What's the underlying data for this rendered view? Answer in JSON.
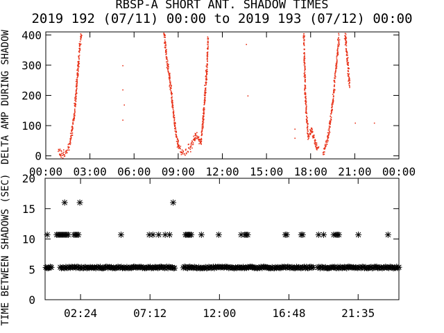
{
  "title": "RBSP-A SHORT ANT. SHADOW TIMES",
  "subtitle": "2019 192 (07/11) 00:00 to 2019 193 (07/12) 00:00",
  "colors": {
    "top_series": "#e8331a",
    "bottom_series": "#000000",
    "frame": "#000000"
  },
  "chart_data": [
    {
      "type": "scatter",
      "ylabel": "DELTA AMP DURING SHADOW",
      "ylim": [
        -10,
        410
      ],
      "xlim_hours": [
        0,
        24
      ],
      "yticks": [
        "0",
        "100",
        "200",
        "300",
        "400"
      ],
      "ytick_values": [
        0,
        100,
        200,
        300,
        400
      ],
      "xticks": [
        "00:00",
        "03:00",
        "06:00",
        "09:00",
        "12:00",
        "15:00",
        "18:00",
        "21:00",
        "00:00"
      ],
      "xtick_values": [
        0,
        3,
        6,
        9,
        12,
        15,
        18,
        21,
        24
      ],
      "series": [
        {
          "color": "#e8331a",
          "marker": "dot",
          "curves": [
            [
              [
                0.8,
                20
              ],
              [
                1.0,
                5
              ],
              [
                1.3,
                10
              ],
              [
                1.6,
                40
              ],
              [
                1.9,
                130
              ],
              [
                2.1,
                260
              ],
              [
                2.3,
                380
              ],
              [
                2.4,
                410
              ]
            ],
            [
              [
                8.0,
                410
              ],
              [
                8.2,
                320
              ],
              [
                8.4,
                250
              ],
              [
                8.6,
                160
              ],
              [
                8.8,
                80
              ],
              [
                9.0,
                30
              ],
              [
                9.3,
                10
              ],
              [
                9.8,
                30
              ],
              [
                10.2,
                70
              ],
              [
                10.5,
                40
              ]
            ],
            [
              [
                10.5,
                40
              ],
              [
                10.7,
                150
              ],
              [
                10.9,
                280
              ],
              [
                11.0,
                400
              ]
            ],
            [
              [
                17.5,
                410
              ],
              [
                17.6,
                200
              ],
              [
                17.8,
                60
              ],
              [
                18.0,
                90
              ],
              [
                18.3,
                40
              ],
              [
                18.5,
                20
              ]
            ],
            [
              [
                18.8,
                10
              ],
              [
                19.1,
                50
              ],
              [
                19.4,
                150
              ],
              [
                19.7,
                300
              ],
              [
                19.9,
                400
              ]
            ],
            [
              [
                20.3,
                410
              ],
              [
                20.5,
                300
              ],
              [
                20.6,
                230
              ]
            ]
          ],
          "scatter": [
            [
              5.2,
              300
            ],
            [
              5.2,
              220
            ],
            [
              5.3,
              170
            ],
            [
              5.2,
              120
            ],
            [
              13.6,
              370
            ],
            [
              13.7,
              200
            ],
            [
              21.0,
              110
            ],
            [
              22.3,
              110
            ],
            [
              16.9,
              90
            ],
            [
              16.9,
              60
            ]
          ]
        }
      ]
    },
    {
      "type": "scatter",
      "ylabel": "TIME BETWEEN SHADOWS (SEC)",
      "ylim": [
        0,
        20
      ],
      "xlim_hours": [
        -0.05,
        24.4
      ],
      "yticks": [
        "0",
        "5",
        "10",
        "15",
        "20"
      ],
      "ytick_values": [
        0,
        5,
        10,
        15,
        20
      ],
      "xticks": [
        "02:24",
        "07:12",
        "12:00",
        "16:48",
        "21:35"
      ],
      "xtick_values": [
        2.4,
        7.2,
        12.0,
        16.8,
        21.583
      ],
      "series": [
        {
          "color": "#000000",
          "marker": "asterisk",
          "band_y": 5.3,
          "band_segments": [
            [
              0.0,
              0.45
            ],
            [
              1.0,
              8.95
            ],
            [
              9.5,
              18.5
            ],
            [
              18.8,
              24.4
            ]
          ],
          "points": [
            [
              0.1,
              10.7
            ],
            [
              0.75,
              10.7
            ],
            [
              0.85,
              10.7
            ],
            [
              0.95,
              10.7
            ],
            [
              1.05,
              10.7
            ],
            [
              1.15,
              10.7
            ],
            [
              1.25,
              10.7
            ],
            [
              1.35,
              10.7
            ],
            [
              1.45,
              10.7
            ],
            [
              1.55,
              10.7
            ],
            [
              1.3,
              16.0
            ],
            [
              2.35,
              16.0
            ],
            [
              1.95,
              10.7
            ],
            [
              2.05,
              10.7
            ],
            [
              2.15,
              10.7
            ],
            [
              2.25,
              10.7
            ],
            [
              5.2,
              10.7
            ],
            [
              7.15,
              10.7
            ],
            [
              7.4,
              10.7
            ],
            [
              7.8,
              10.7
            ],
            [
              8.25,
              10.7
            ],
            [
              8.55,
              10.7
            ],
            [
              8.8,
              16.0
            ],
            [
              9.65,
              10.7
            ],
            [
              9.75,
              10.7
            ],
            [
              9.85,
              10.7
            ],
            [
              9.95,
              10.7
            ],
            [
              10.05,
              10.7
            ],
            [
              10.75,
              10.7
            ],
            [
              11.95,
              10.7
            ],
            [
              13.5,
              10.7
            ],
            [
              13.75,
              10.7
            ],
            [
              13.85,
              10.7
            ],
            [
              13.95,
              10.7
            ],
            [
              16.55,
              10.7
            ],
            [
              16.65,
              10.7
            ],
            [
              17.65,
              10.7
            ],
            [
              17.75,
              10.7
            ],
            [
              18.85,
              10.7
            ],
            [
              19.2,
              10.7
            ],
            [
              19.9,
              10.7
            ],
            [
              20.05,
              10.7
            ],
            [
              20.15,
              10.7
            ],
            [
              20.25,
              10.7
            ],
            [
              21.6,
              10.7
            ],
            [
              23.65,
              10.7
            ]
          ]
        }
      ]
    }
  ]
}
